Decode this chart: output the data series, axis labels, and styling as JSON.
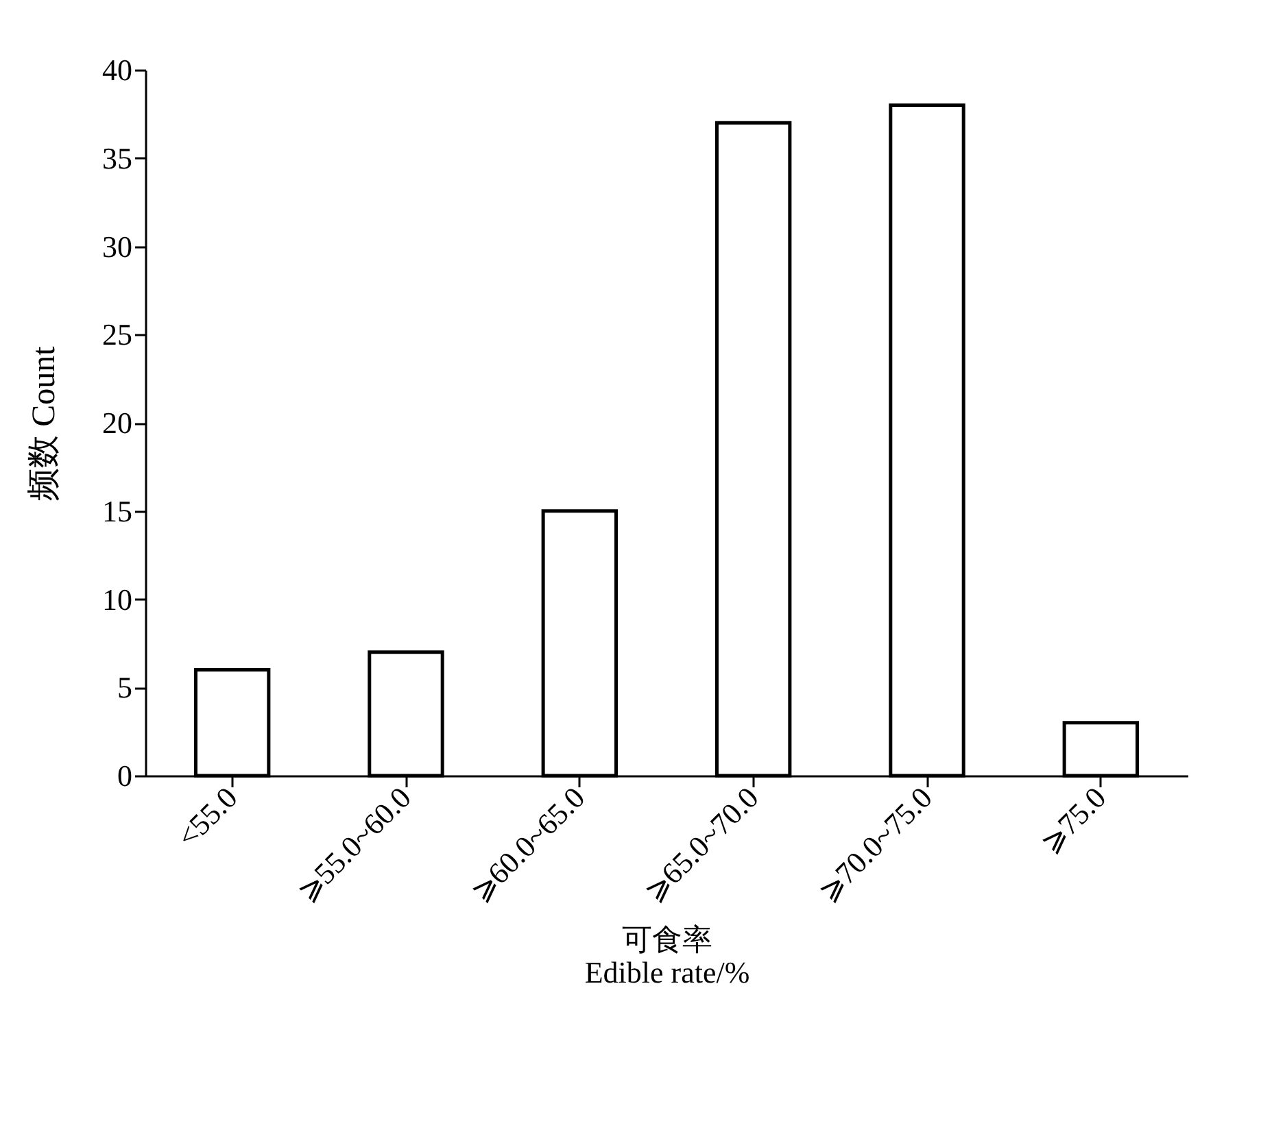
{
  "chart_data": {
    "type": "bar",
    "xlabel": "可食率\nEdible rate/%",
    "ylabel": "频数 Count",
    "categories": [
      "<55.0",
      "⩾55.0~60.0",
      "⩾60.0~65.0",
      "⩾65.0~70.0",
      "⩾70.0~75.0",
      "⩾75.0"
    ],
    "values": [
      6,
      7,
      15,
      37,
      38,
      3
    ],
    "color": "#ffffff",
    "ylim": [
      0,
      40
    ],
    "yticks": [
      0,
      5,
      10,
      15,
      20,
      25,
      30,
      35,
      40
    ],
    "grid": false
  }
}
